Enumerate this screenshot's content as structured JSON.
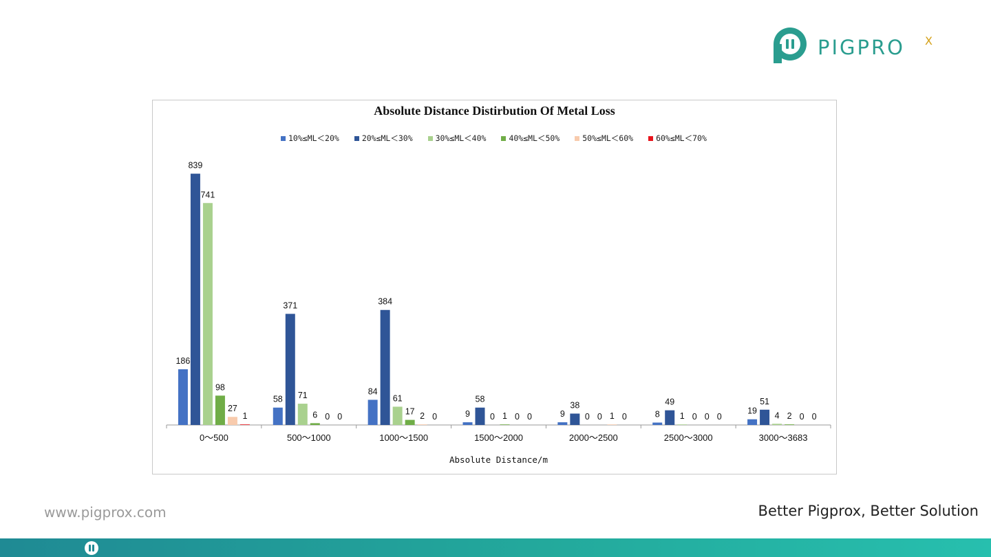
{
  "brand": {
    "name": "PIGPROX",
    "name_main": "PIGPRO",
    "name_x": "X"
  },
  "footer": {
    "url": "www.pigprox.com",
    "slogan": "Better Pigprox, Better Solution"
  },
  "colors": {
    "teal": "#2a9d8f",
    "series": [
      "#4472c4",
      "#2f5597",
      "#a9d18e",
      "#70ad47",
      "#f8cbad",
      "#e8141c"
    ]
  },
  "chart_data": {
    "type": "bar",
    "title": "Absolute Distance Distirbution Of Metal Loss",
    "xlabel": "Absolute Distance/m",
    "ylabel": "",
    "ylim": [
      0,
      900
    ],
    "legend_position": "top",
    "grid": false,
    "categories": [
      "0～500",
      "500～1000",
      "1000～1500",
      "1500～2000",
      "2000～2500",
      "2500～3000",
      "3000～3683"
    ],
    "series": [
      {
        "name": "10%≤ML＜20%",
        "color": "#4472c4",
        "values": [
          186,
          58,
          84,
          9,
          9,
          8,
          19
        ]
      },
      {
        "name": "20%≤ML＜30%",
        "color": "#2f5597",
        "values": [
          839,
          371,
          384,
          58,
          38,
          49,
          51
        ]
      },
      {
        "name": "30%≤ML＜40%",
        "color": "#a9d18e",
        "values": [
          741,
          71,
          61,
          0,
          0,
          1,
          4
        ]
      },
      {
        "name": "40%≤ML＜50%",
        "color": "#70ad47",
        "values": [
          98,
          6,
          17,
          1,
          0,
          0,
          2
        ]
      },
      {
        "name": "50%≤ML＜60%",
        "color": "#f8cbad",
        "values": [
          27,
          0,
          2,
          0,
          1,
          0,
          0
        ]
      },
      {
        "name": "60%≤ML＜70%",
        "color": "#e8141c",
        "values": [
          1,
          0,
          0,
          0,
          0,
          0,
          0
        ]
      }
    ]
  }
}
